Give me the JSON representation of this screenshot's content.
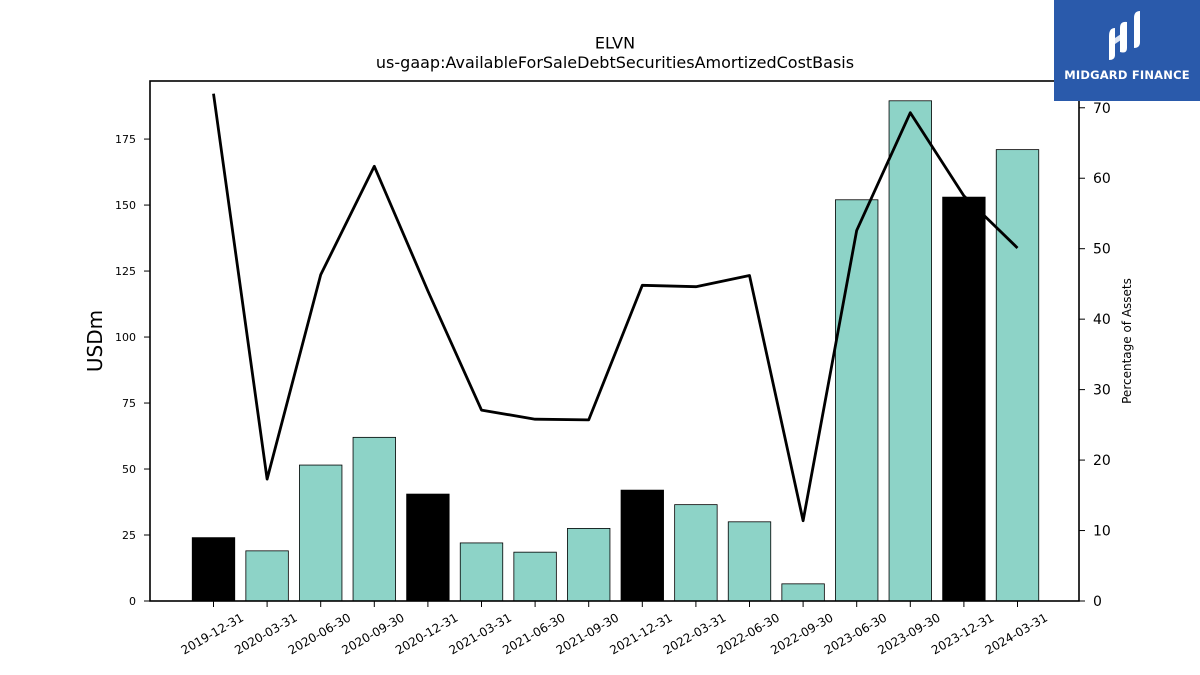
{
  "chart_data": {
    "type": "bar",
    "title": "ELVN",
    "subtitle": "us-gaap:AvailableForSaleDebtSecuritiesAmortizedCostBasis",
    "ylabel": "USDm",
    "y2label": "Percentage of Assets",
    "categories": [
      "2019-12-31",
      "2020-03-31",
      "2020-06-30",
      "2020-09-30",
      "2020-12-31",
      "2021-03-31",
      "2021-06-30",
      "2021-09-30",
      "2021-12-31",
      "2022-03-31",
      "2022-06-30",
      "2022-09-30",
      "2023-06-30",
      "2023-09-30",
      "2023-12-31",
      "2024-03-31"
    ],
    "ylim": [
      0,
      197
    ],
    "y2lim": [
      0,
      73.8
    ],
    "yticks": [
      0,
      25,
      50,
      75,
      100,
      125,
      150,
      175
    ],
    "y2ticks": [
      0,
      10,
      20,
      30,
      40,
      50,
      60,
      70
    ],
    "series": [
      {
        "type": "bar",
        "values": [
          24,
          19,
          51.5,
          62,
          40.5,
          22,
          18.5,
          27.5,
          42,
          36.5,
          30,
          6.5,
          152,
          189.5,
          153,
          171
        ],
        "colors": [
          "#000000",
          "#8dd3c7",
          "#8dd3c7",
          "#8dd3c7",
          "#000000",
          "#8dd3c7",
          "#8dd3c7",
          "#8dd3c7",
          "#000000",
          "#8dd3c7",
          "#8dd3c7",
          "#8dd3c7",
          "#8dd3c7",
          "#8dd3c7",
          "#000000",
          "#8dd3c7"
        ]
      },
      {
        "type": "line",
        "axis": "right",
        "color": "#000000",
        "values": [
          72.0,
          17.3,
          46.3,
          61.7,
          44.0,
          27.1,
          25.8,
          25.7,
          44.8,
          44.6,
          46.2,
          11.4,
          52.6,
          69.3,
          57.5,
          50.1
        ]
      }
    ],
    "grid": false,
    "legend": "none"
  },
  "logo": {
    "text": "MIDGARD FINANCE",
    "background": "#2a5aab",
    "icon": "midgard-logo-icon"
  }
}
